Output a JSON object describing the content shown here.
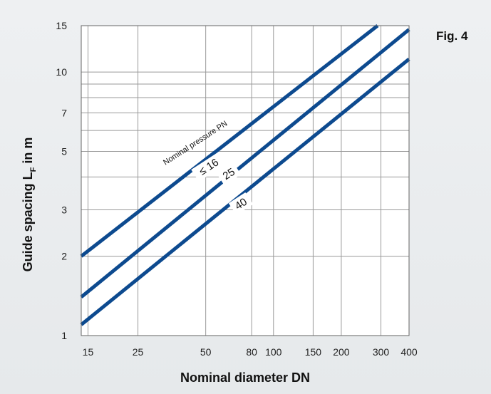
{
  "figure_label": "Fig. 4",
  "colors": {
    "line": "#0d4a8f",
    "grid": "#9a9a9a",
    "plot_bg": "#ffffff",
    "page_bg": "#e9ecee"
  },
  "chart_data": {
    "type": "line",
    "xscale": "log",
    "yscale": "log",
    "xlabel": "Nominal diameter DN",
    "ylabel_main": "Guide spacing L",
    "ylabel_sub": "F",
    "ylabel_tail": " in m",
    "xlim": [
      14,
      400
    ],
    "ylim": [
      1,
      15
    ],
    "grid": true,
    "x_ticks": [
      15,
      25,
      50,
      80,
      100,
      150,
      200,
      300,
      400
    ],
    "x_tick_labels": [
      "15",
      "25",
      "50",
      "80",
      "100",
      "150",
      "200",
      "300",
      "400"
    ],
    "y_ticks": [
      1,
      2,
      3,
      5,
      7,
      10,
      15
    ],
    "y_tick_labels": [
      "1",
      "2",
      "3",
      "5",
      "7",
      "10",
      "15"
    ],
    "y_grid_extra": [
      4,
      6,
      8,
      9
    ],
    "annotation": "Nominal pressure PN",
    "series": [
      {
        "name": "≤ 16",
        "points": [
          [
            14,
            2.0
          ],
          [
            290,
            15.0
          ]
        ]
      },
      {
        "name": "25",
        "points": [
          [
            14,
            1.4
          ],
          [
            400,
            14.5
          ]
        ]
      },
      {
        "name": "40",
        "points": [
          [
            14,
            1.1
          ],
          [
            400,
            11.2
          ]
        ]
      }
    ]
  }
}
